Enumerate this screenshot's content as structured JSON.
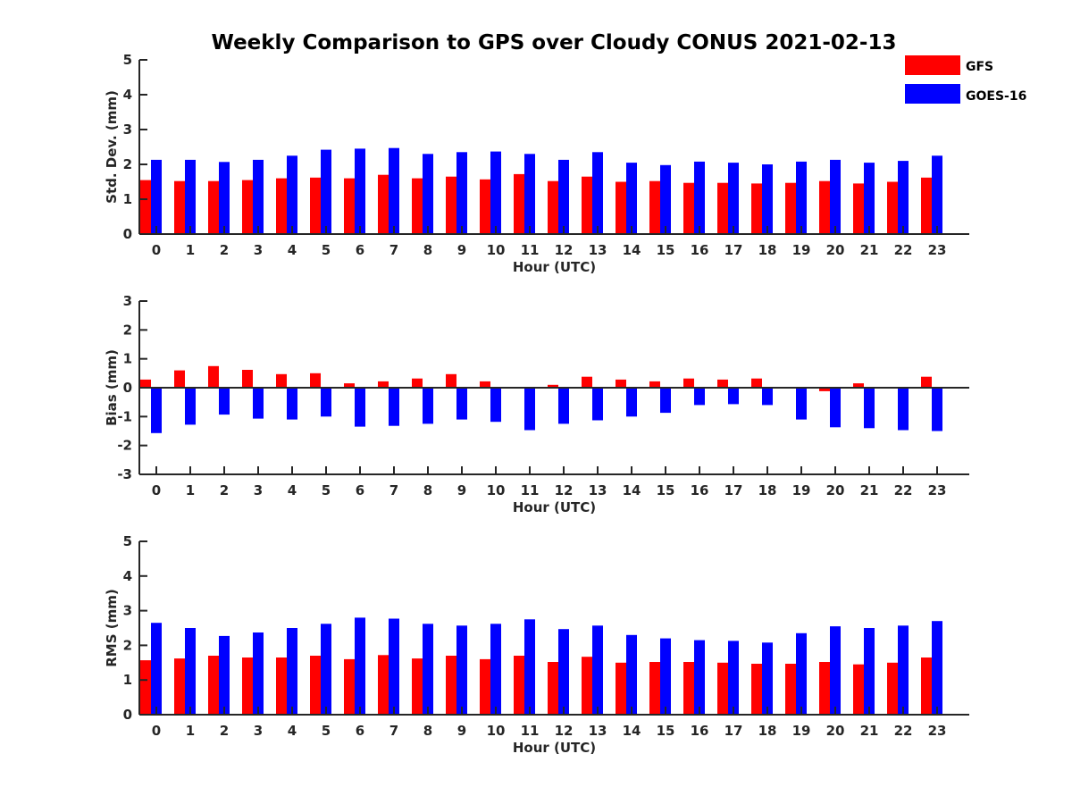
{
  "title": "Weekly Comparison to GPS over Cloudy CONUS 2021-02-13",
  "legend": [
    {
      "name": "GFS",
      "color": "#ff0000"
    },
    {
      "name": "GOES-16",
      "color": "#0000ff"
    }
  ],
  "chart_data": [
    {
      "type": "bar",
      "title": "",
      "xlabel": "Hour (UTC)",
      "ylabel": "Std. Dev. (mm)",
      "ylim": [
        0,
        5
      ],
      "yticks": [
        0,
        1,
        2,
        3,
        4,
        5
      ],
      "grid": false,
      "legend_position": "top-right",
      "categories": [
        "0",
        "1",
        "2",
        "3",
        "4",
        "5",
        "6",
        "7",
        "8",
        "9",
        "10",
        "11",
        "12",
        "13",
        "14",
        "15",
        "16",
        "17",
        "18",
        "19",
        "20",
        "21",
        "22",
        "23"
      ],
      "series": [
        {
          "name": "GFS",
          "color": "#ff0000",
          "values": [
            1.55,
            1.52,
            1.52,
            1.55,
            1.6,
            1.62,
            1.6,
            1.7,
            1.6,
            1.65,
            1.57,
            1.72,
            1.52,
            1.65,
            1.5,
            1.52,
            1.47,
            1.47,
            1.45,
            1.47,
            1.52,
            1.45,
            1.5,
            1.62
          ]
        },
        {
          "name": "GOES-16",
          "color": "#0000ff",
          "values": [
            2.13,
            2.13,
            2.07,
            2.13,
            2.25,
            2.42,
            2.45,
            2.47,
            2.3,
            2.35,
            2.37,
            2.3,
            2.13,
            2.35,
            2.05,
            1.98,
            2.08,
            2.05,
            2.0,
            2.08,
            2.13,
            2.05,
            2.1,
            2.25
          ]
        }
      ]
    },
    {
      "type": "bar",
      "title": "",
      "xlabel": "Hour (UTC)",
      "ylabel": "Bias (mm)",
      "ylim": [
        -3,
        3
      ],
      "yticks": [
        -3,
        -2,
        -1,
        0,
        1,
        2,
        3
      ],
      "grid": false,
      "categories": [
        "0",
        "1",
        "2",
        "3",
        "4",
        "5",
        "6",
        "7",
        "8",
        "9",
        "10",
        "11",
        "12",
        "13",
        "14",
        "15",
        "16",
        "17",
        "18",
        "19",
        "20",
        "21",
        "22",
        "23"
      ],
      "series": [
        {
          "name": "GFS",
          "color": "#ff0000",
          "values": [
            0.28,
            0.6,
            0.75,
            0.62,
            0.47,
            0.5,
            0.15,
            0.22,
            0.32,
            0.47,
            0.22,
            -0.03,
            0.1,
            0.38,
            0.28,
            0.22,
            0.32,
            0.28,
            0.32,
            -0.03,
            -0.12,
            0.15,
            0.03,
            0.38
          ]
        },
        {
          "name": "GOES-16",
          "color": "#0000ff",
          "values": [
            -1.57,
            -1.28,
            -0.93,
            -1.07,
            -1.1,
            -1.0,
            -1.35,
            -1.32,
            -1.25,
            -1.1,
            -1.18,
            -1.47,
            -1.25,
            -1.13,
            -1.0,
            -0.87,
            -0.6,
            -0.57,
            -0.6,
            -1.1,
            -1.37,
            -1.4,
            -1.47,
            -1.5
          ]
        }
      ]
    },
    {
      "type": "bar",
      "title": "",
      "xlabel": "Hour (UTC)",
      "ylabel": "RMS (mm)",
      "ylim": [
        0,
        5
      ],
      "yticks": [
        0,
        1,
        2,
        3,
        4,
        5
      ],
      "grid": false,
      "categories": [
        "0",
        "1",
        "2",
        "3",
        "4",
        "5",
        "6",
        "7",
        "8",
        "9",
        "10",
        "11",
        "12",
        "13",
        "14",
        "15",
        "16",
        "17",
        "18",
        "19",
        "20",
        "21",
        "22",
        "23"
      ],
      "series": [
        {
          "name": "GFS",
          "color": "#ff0000",
          "values": [
            1.57,
            1.62,
            1.7,
            1.65,
            1.65,
            1.7,
            1.6,
            1.72,
            1.62,
            1.7,
            1.6,
            1.7,
            1.52,
            1.67,
            1.5,
            1.52,
            1.52,
            1.5,
            1.47,
            1.47,
            1.52,
            1.45,
            1.5,
            1.65
          ]
        },
        {
          "name": "GOES-16",
          "color": "#0000ff",
          "values": [
            2.65,
            2.5,
            2.27,
            2.37,
            2.5,
            2.62,
            2.8,
            2.77,
            2.62,
            2.57,
            2.62,
            2.75,
            2.47,
            2.57,
            2.3,
            2.2,
            2.15,
            2.13,
            2.08,
            2.35,
            2.55,
            2.5,
            2.57,
            2.7
          ]
        }
      ]
    }
  ]
}
